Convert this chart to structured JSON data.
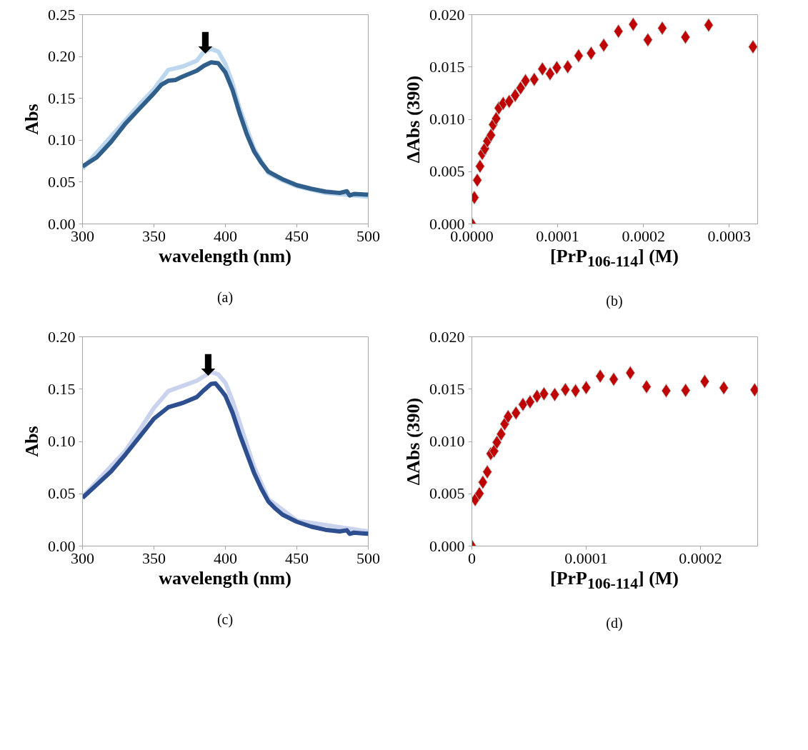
{
  "chart_data": [
    {
      "type": "line",
      "xlabel": "wavelength (nm)",
      "ylabel": "Abs",
      "xlim": [
        300,
        500
      ],
      "ylim": [
        0,
        0.25
      ],
      "xticks": [
        300,
        350,
        400,
        450,
        500
      ],
      "yticks": [
        {
          "value": 0,
          "label": "0.00"
        },
        {
          "value": 0.05,
          "label": "0.05"
        },
        {
          "value": 0.1,
          "label": "0.10"
        },
        {
          "value": 0.15,
          "label": "0.15"
        },
        {
          "value": 0.2,
          "label": "0.20"
        },
        {
          "value": 0.25,
          "label": "0.25"
        }
      ],
      "series": [
        {
          "color": "#bdd7ee",
          "x": [
            300,
            340,
            350,
            360,
            370,
            380,
            385,
            390,
            395,
            400,
            405,
            410,
            420,
            430,
            440,
            450,
            470,
            500
          ],
          "values": [
            0.066,
            0.143,
            0.161,
            0.184,
            0.188,
            0.195,
            0.206,
            0.209,
            0.206,
            0.191,
            0.168,
            0.138,
            0.09,
            0.061,
            0.052,
            0.045,
            0.037,
            0.0324
          ]
        },
        {
          "color": "#2f5f8a",
          "x": [
            300,
            310,
            320,
            330,
            340,
            350,
            355,
            360,
            365,
            370,
            380,
            385,
            390,
            395,
            400,
            405,
            410,
            415,
            420,
            425,
            430,
            435,
            440,
            450,
            460,
            470,
            480,
            485,
            487,
            490,
            500
          ],
          "values": [
            0.0688,
            0.0796,
            0.098,
            0.1198,
            0.138,
            0.156,
            0.166,
            0.171,
            0.172,
            0.176,
            0.183,
            0.189,
            0.193,
            0.192,
            0.181,
            0.16,
            0.132,
            0.107,
            0.087,
            0.0735,
            0.0627,
            0.058,
            0.0534,
            0.0463,
            0.042,
            0.0386,
            0.037,
            0.039,
            0.034,
            0.0358,
            0.0349
          ]
        }
      ],
      "annotations": [
        "(a)",
        {
          "text": "⬇",
          "x": 386,
          "y": 0.197
        }
      ]
    },
    {
      "type": "scatter",
      "marker": "diamond",
      "xlabel": "[PrP$_{106-114}$] (M)",
      "ylabel": "ΔAbs (390)",
      "xlim": [
        0,
        0.000333
      ],
      "ylim": [
        0,
        0.02
      ],
      "xticks": [
        {
          "value": 0,
          "label": "0.0000"
        },
        0.0001,
        0.0002,
        0.0003
      ],
      "yticks": [
        {
          "value": 0,
          "label": "0.000"
        },
        {
          "value": 0.005,
          "label": "0.005"
        },
        {
          "value": 0.01,
          "label": "0.010"
        },
        {
          "value": 0.015,
          "label": "0.015"
        },
        {
          "value": 0.02,
          "label": "0.020"
        }
      ],
      "series": [
        {
          "color": "#c00000",
          "x": [
            0,
            2.9e-06,
            6.3e-06,
            9.5e-06,
            1.21e-05,
            1.52e-05,
            1.81e-05,
            2.22e-05,
            2.48e-05,
            2.83e-05,
            3.14e-05,
            3.65e-05,
            4.35e-05,
            5.05e-05,
            5.68e-05,
            6.25e-05,
            7.27e-05,
            8.22e-05,
            9.11e-05,
            9.9e-05,
            0.0001117,
            0.0001244,
            0.000139,
            0.0001537,
            0.0001708,
            0.000188,
            0.0002051,
            0.0002219,
            0.0002489,
            0.0002759,
            0.0003276
          ],
          "values": [
            0,
            0.00252,
            0.00418,
            0.00551,
            0.00673,
            0.0072,
            0.00792,
            0.00848,
            0.00949,
            0.01007,
            0.01107,
            0.01152,
            0.01171,
            0.01229,
            0.01299,
            0.01369,
            0.01381,
            0.01481,
            0.01435,
            0.01493,
            0.01502,
            0.01607,
            0.01631,
            0.01708,
            0.01841,
            0.01907,
            0.01759,
            0.01871,
            0.01785,
            0.019,
            0.01692
          ]
        }
      ],
      "annotations": [
        "(b)"
      ]
    },
    {
      "type": "line",
      "xlabel": "wavelength (nm)",
      "ylabel": "Abs",
      "xlim": [
        300,
        500
      ],
      "ylim": [
        0,
        0.2
      ],
      "xticks": [
        300,
        350,
        400,
        450,
        500
      ],
      "yticks": [
        {
          "value": 0,
          "label": "0.00"
        },
        {
          "value": 0.05,
          "label": "0.05"
        },
        {
          "value": 0.1,
          "label": "0.10"
        },
        {
          "value": 0.15,
          "label": "0.15"
        },
        {
          "value": 0.2,
          "label": "0.20"
        }
      ],
      "series": [
        {
          "color": "#c9d3ee",
          "x": [
            300,
            330,
            340,
            350,
            360,
            370,
            380,
            390,
            395,
            400,
            405,
            410,
            420,
            430,
            450,
            500
          ],
          "values": [
            0.047,
            0.091,
            0.111,
            0.132,
            0.148,
            0.153,
            0.158,
            0.1665,
            0.164,
            0.156,
            0.139,
            0.118,
            0.076,
            0.045,
            0.0243,
            0.014
          ]
        },
        {
          "color": "#2e4f8f",
          "x": [
            300,
            310,
            320,
            330,
            340,
            350,
            360,
            370,
            380,
            385,
            390,
            393,
            397,
            400,
            405,
            410,
            415,
            420,
            425,
            430,
            435,
            440,
            450,
            460,
            470,
            480,
            485,
            487,
            490,
            500
          ],
          "values": [
            0.0461,
            0.0587,
            0.0713,
            0.0874,
            0.1046,
            0.1218,
            0.1326,
            0.1367,
            0.1424,
            0.149,
            0.155,
            0.1555,
            0.149,
            0.1436,
            0.1275,
            0.1069,
            0.0885,
            0.0702,
            0.0553,
            0.0427,
            0.0358,
            0.03,
            0.0232,
            0.0186,
            0.0156,
            0.014,
            0.0151,
            0.0117,
            0.0128,
            0.0117
          ]
        }
      ],
      "annotations": [
        "(c)",
        {
          "text": "⬇",
          "x": 388,
          "y": 0.157
        }
      ]
    },
    {
      "type": "scatter",
      "marker": "diamond",
      "xlabel": "[PrP$_{106-114}$] (M)",
      "ylabel": "ΔAbs (390)",
      "xlim": [
        0,
        0.00025
      ],
      "ylim": [
        0,
        0.02
      ],
      "xticks": [
        0,
        0.0001,
        0.0002
      ],
      "yticks": [
        {
          "value": 0,
          "label": "0.000"
        },
        {
          "value": 0.005,
          "label": "0.005"
        },
        {
          "value": 0.01,
          "label": "0.010"
        },
        {
          "value": 0.015,
          "label": "0.015"
        },
        {
          "value": 0.02,
          "label": "0.020"
        }
      ],
      "series": [
        {
          "color": "#c00000",
          "x": [
            0,
            2.9e-06,
            6.6e-06,
            9.6e-06,
            1.35e-05,
            1.65e-05,
            1.94e-05,
            2.19e-05,
            2.56e-05,
            2.87e-05,
            3.17e-05,
            3.86e-05,
            4.47e-05,
            5.09e-05,
            5.7e-05,
            6.31e-05,
            7.25e-05,
            8.18e-05,
            9.07e-05,
            0.0001,
            0.0001123,
            0.0001241,
            0.0001386,
            0.0001528,
            0.00017,
            0.000187,
            0.0002037,
            0.0002204,
            0.0002474
          ],
          "values": [
            0,
            0.00444,
            0.00502,
            0.0061,
            0.00709,
            0.00883,
            0.00908,
            0.00991,
            0.0107,
            0.01167,
            0.01237,
            0.01272,
            0.01354,
            0.01378,
            0.01432,
            0.01455,
            0.01448,
            0.01495,
            0.01484,
            0.01514,
            0.01624,
            0.01594,
            0.01655,
            0.01523,
            0.01484,
            0.01488,
            0.01573,
            0.01512,
            0.01493
          ]
        }
      ],
      "annotations": [
        "(d)"
      ]
    }
  ]
}
